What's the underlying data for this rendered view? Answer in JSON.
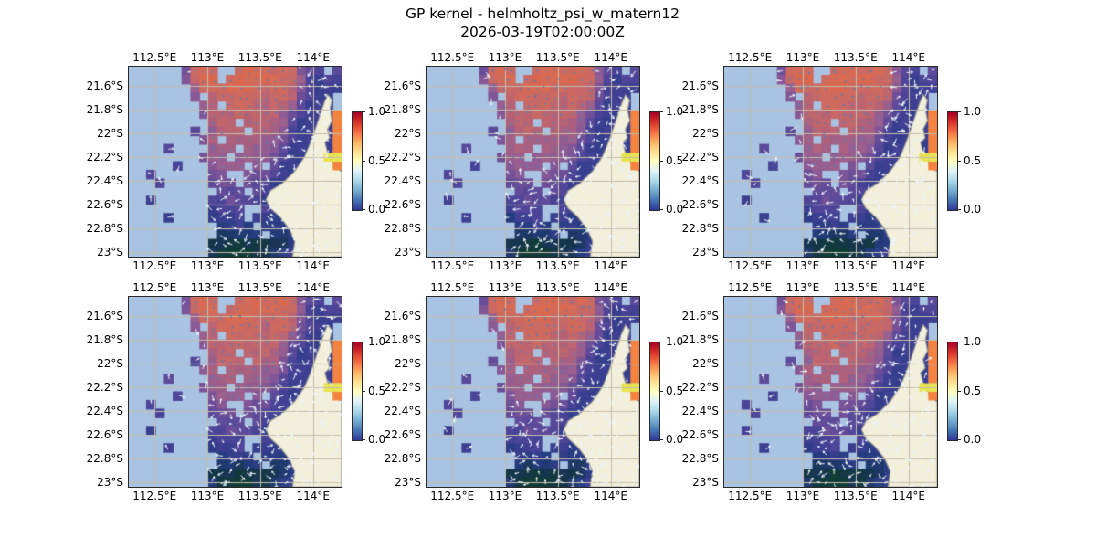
{
  "figure": {
    "title": "GP kernel - helmholtz_psi_w_matern12",
    "subtitle": "2026-03-19T02:00:00Z"
  },
  "chart_data": {
    "type": "heatmap",
    "title": "GP kernel - helmholtz_psi_w_matern12",
    "subtitle": "2026-03-19T02:00:00Z",
    "layout": {
      "rows": 2,
      "cols": 3,
      "projection": "PlateCarree",
      "grid_on": true
    },
    "lon_range": [
      112.24,
      114.27
    ],
    "lat_range": [
      -23.04,
      -21.44
    ],
    "axes": {
      "x_ticks": [
        {
          "label": "112.5°E",
          "pos": 0.121
        },
        {
          "label": "113°E",
          "pos": 0.369
        },
        {
          "label": "113.5°E",
          "pos": 0.617
        },
        {
          "label": "114°E",
          "pos": 0.866
        }
      ],
      "y_ticks": [
        {
          "label": "21.6°S",
          "pos": 0.103
        },
        {
          "label": "21.8°S",
          "pos": 0.228
        },
        {
          "label": "22°S",
          "pos": 0.353
        },
        {
          "label": "22.2°S",
          "pos": 0.478
        },
        {
          "label": "22.4°S",
          "pos": 0.603
        },
        {
          "label": "22.6°S",
          "pos": 0.727
        },
        {
          "label": "22.8°S",
          "pos": 0.852
        },
        {
          "label": "23°S",
          "pos": 0.977
        }
      ]
    },
    "colorbar": {
      "vmin": 0.0,
      "vmax": 1.0,
      "colormap": "RdYlBu_r",
      "ticks": [
        {
          "label": "1.0",
          "frac": 0.0
        },
        {
          "label": "0.5",
          "frac": 0.5
        },
        {
          "label": "0.0",
          "frac": 1.0
        }
      ],
      "stops_bottom_to_top": [
        [
          0.0,
          "#313695"
        ],
        [
          0.1,
          "#4575b4"
        ],
        [
          0.2,
          "#74add1"
        ],
        [
          0.3,
          "#abd9e9"
        ],
        [
          0.4,
          "#e0f3f8"
        ],
        [
          0.5,
          "#ffffbf"
        ],
        [
          0.6,
          "#fee090"
        ],
        [
          0.7,
          "#fdae61"
        ],
        [
          0.8,
          "#f46d43"
        ],
        [
          0.9,
          "#d73027"
        ],
        [
          1.0,
          "#a50026"
        ]
      ]
    },
    "panels": [
      {
        "id": "panel-1",
        "row": 0,
        "col": 0,
        "seed": 11
      },
      {
        "id": "panel-2",
        "row": 0,
        "col": 1,
        "seed": 23
      },
      {
        "id": "panel-3",
        "row": 0,
        "col": 2,
        "seed": 37
      },
      {
        "id": "panel-4",
        "row": 1,
        "col": 0,
        "seed": 51
      },
      {
        "id": "panel-5",
        "row": 1,
        "col": 1,
        "seed": 67
      },
      {
        "id": "panel-6",
        "row": 1,
        "col": 2,
        "seed": 83
      }
    ],
    "field_grid": {
      "encoding": "rows top-to-bottom, 24 cells per row; hex char '0'-'f' = value n/15 on [0,1]; '.' = masked (no data); 'O' = gulf high cell (~0.72); 'Y' = gulf mid cell (~0.55)",
      "rows": [
        "......7cdc..cddccdc865.6",
        "......8cdd.cdddddcc95455",
        ".......9cccdddccccb85444",
        ".......8.bcccccbccb7544.",
        "........9b.cccbbcb96444.",
        "........8bbbcbbbb975444O",
        ".........abb.bbba964444O",
        ".......6.9bbb.baa854444O",
        "........8a.aaaa99754444O",
        "....6....9aa.a998644444O",
        "........799.9998754444YY",
        ".....5...8999.8.6444444O",
        "..5......78..87754444444",
        "...5.....677.76544444444",
        "..........666.6544444444",
        "..4......557665444444444",
        ".........4555..544444444",
        "....4....3445.4434444444",
        "..........3343.333444444",
        "..........22223.22344444",
        ".........111011112344444",
        ".........210001123444444"
      ]
    },
    "ocean_colormap_stops": [
      [
        0.0,
        "#103c36"
      ],
      [
        0.08,
        "#16354e"
      ],
      [
        0.17,
        "#253c80"
      ],
      [
        0.27,
        "#3c3f92"
      ],
      [
        0.33,
        "#4c4498"
      ],
      [
        0.4,
        "#5c4a9a"
      ],
      [
        0.47,
        "#6f4f98"
      ],
      [
        0.53,
        "#835797"
      ],
      [
        0.6,
        "#985f90"
      ],
      [
        0.67,
        "#ab607f"
      ],
      [
        0.73,
        "#bc6472"
      ],
      [
        0.8,
        "#cb6a62"
      ],
      [
        0.87,
        "#d96b52"
      ],
      [
        0.93,
        "#dd5f43"
      ],
      [
        1.0,
        "#d84b35"
      ]
    ],
    "coastline": [
      [
        0.935,
        0.148
      ],
      [
        0.955,
        0.175
      ],
      [
        0.945,
        0.225
      ],
      [
        0.955,
        0.285
      ],
      [
        0.934,
        0.33
      ],
      [
        0.944,
        0.375
      ],
      [
        0.922,
        0.4
      ],
      [
        0.934,
        0.45
      ],
      [
        0.952,
        0.478
      ],
      [
        0.965,
        0.52
      ],
      [
        1.0,
        0.553
      ],
      [
        1.0,
        1.0
      ],
      [
        0.77,
        1.0
      ],
      [
        0.78,
        0.92
      ],
      [
        0.755,
        0.855
      ],
      [
        0.71,
        0.79
      ],
      [
        0.664,
        0.744
      ],
      [
        0.645,
        0.7
      ],
      [
        0.666,
        0.652
      ],
      [
        0.72,
        0.615
      ],
      [
        0.78,
        0.55
      ],
      [
        0.826,
        0.475
      ],
      [
        0.851,
        0.408
      ],
      [
        0.876,
        0.33
      ],
      [
        0.9,
        0.25
      ],
      [
        0.92,
        0.185
      ]
    ],
    "colors": {
      "background": "#ffffff",
      "ocean_mask": "#a9c3e2",
      "land": "#f2efdb",
      "coast_line": "#9b9b93",
      "gridline": "#c4bdad",
      "frame": "#2a2a2a",
      "quiver_light": "#eef6fa",
      "quiver_dark": "#5f7daf",
      "gulf_orange": "#f5823e",
      "gulf_yellow": "#e8e44e"
    },
    "overlays": {
      "quiver": true,
      "quiver_description": "small velocity arrows over valid ocean cells"
    }
  }
}
